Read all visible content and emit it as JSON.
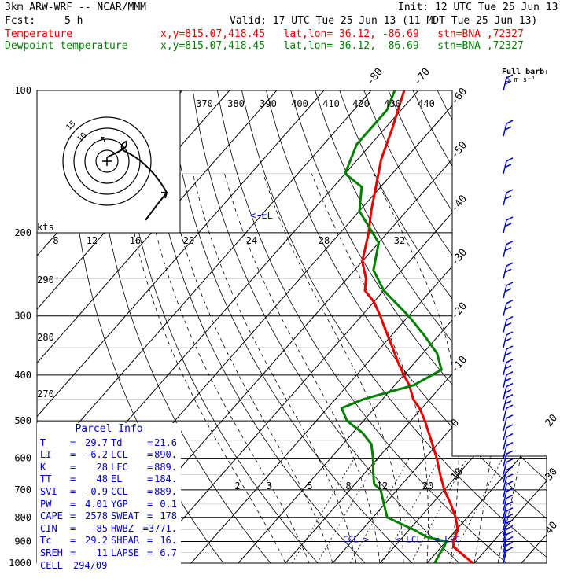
{
  "header": {
    "title": "3km ARW-WRF -- NCAR/MMM",
    "init": "Init: 12 UTC Tue 25 Jun 13",
    "fcst_label": "Fcst:",
    "fcst_value": "5 h",
    "valid": "Valid: 17 UTC Tue 25 Jun 13 (11 MDT Tue 25 Jun 13)",
    "temp_label": "Temperature",
    "dew_label": "Dewpoint temperature",
    "loc_info": "x,y=815.07,418.45   lat,lon= 36.12, -86.69   stn=BNA ,72327",
    "colors": {
      "temperature": "#e60000",
      "dewpoint": "#008000",
      "info": "#0000c8"
    }
  },
  "chart_data": {
    "type": "skew-t",
    "pressure_ticks": [
      100,
      200,
      300,
      400,
      500,
      600,
      700,
      800,
      900,
      1000
    ],
    "pressure_range": [
      1000,
      100
    ],
    "temperature_ticks": [
      -80,
      -70,
      -60,
      -50,
      -40,
      -30,
      -20,
      -10,
      0,
      10,
      20,
      30,
      40
    ],
    "theta_labels": [
      370,
      380,
      390,
      400,
      410,
      420,
      430,
      440
    ],
    "theta_e_labels": [
      290,
      280,
      270
    ],
    "mixing_ratio_labels": [
      2,
      3,
      5,
      8,
      12,
      20
    ],
    "series": [
      {
        "name": "Temperature",
        "color": "#e60000",
        "points": [
          [
            1000,
            29.7
          ],
          [
            960,
            26.0
          ],
          [
            925,
            22.7
          ],
          [
            900,
            21.5
          ],
          [
            850,
            20.3
          ],
          [
            800,
            17.5
          ],
          [
            750,
            14.0
          ],
          [
            700,
            10.0
          ],
          [
            650,
            6.3
          ],
          [
            600,
            2.5
          ],
          [
            550,
            -2.0
          ],
          [
            500,
            -7.0
          ],
          [
            470,
            -10.5
          ],
          [
            450,
            -13.5
          ],
          [
            420,
            -17.0
          ],
          [
            400,
            -20.0
          ],
          [
            380,
            -23.0
          ],
          [
            350,
            -27.5
          ],
          [
            320,
            -32.5
          ],
          [
            300,
            -36.0
          ],
          [
            280,
            -40.0
          ],
          [
            265,
            -44.0
          ],
          [
            250,
            -46.0
          ],
          [
            230,
            -50.0
          ],
          [
            200,
            -54.0
          ],
          [
            180,
            -57.5
          ],
          [
            160,
            -61.0
          ],
          [
            140,
            -65.0
          ],
          [
            120,
            -68.5
          ],
          [
            100,
            -73.0
          ]
        ]
      },
      {
        "name": "Dewpoint temperature",
        "color": "#008000",
        "points": [
          [
            1000,
            21.6
          ],
          [
            960,
            21.0
          ],
          [
            920,
            20.5
          ],
          [
            900,
            20.0
          ],
          [
            880,
            15.0
          ],
          [
            850,
            11.0
          ],
          [
            800,
            3.0
          ],
          [
            760,
            0.5
          ],
          [
            700,
            -3.5
          ],
          [
            680,
            -6.0
          ],
          [
            640,
            -8.5
          ],
          [
            600,
            -11.0
          ],
          [
            560,
            -14.0
          ],
          [
            530,
            -18.0
          ],
          [
            500,
            -23.5
          ],
          [
            470,
            -27.0
          ],
          [
            450,
            -24.0
          ],
          [
            420,
            -16.0
          ],
          [
            390,
            -13.0
          ],
          [
            360,
            -17.0
          ],
          [
            330,
            -23.0
          ],
          [
            300,
            -30.0
          ],
          [
            265,
            -40.0
          ],
          [
            240,
            -46.0
          ],
          [
            210,
            -50.0
          ],
          [
            180,
            -60.0
          ],
          [
            160,
            -64.0
          ],
          [
            150,
            -70.0
          ],
          [
            130,
            -73.0
          ],
          [
            110,
            -73.0
          ],
          [
            100,
            -75.0
          ]
        ]
      }
    ],
    "level_markers": [
      {
        "label": "<-EL",
        "pressure": 184
      },
      {
        "label": "CCL->",
        "pressure": 889
      },
      {
        "label": "<-LCL",
        "pressure": 890
      },
      {
        "label": "<-LFC",
        "pressure": 889
      }
    ],
    "hodograph": {
      "units_label": "kts",
      "ring_labels": [
        "5",
        "10",
        "15"
      ],
      "speed_axis": [
        8,
        12,
        16,
        20,
        24,
        28,
        32
      ]
    },
    "wind_barbs": {
      "legend": "Full barb:",
      "legend_value": "5 m s⁻¹",
      "levels": [
        1000,
        975,
        950,
        925,
        900,
        875,
        850,
        825,
        800,
        775,
        750,
        725,
        700,
        675,
        650,
        625,
        600,
        575,
        550,
        525,
        500,
        475,
        450,
        425,
        400,
        375,
        350,
        325,
        300,
        275,
        250,
        225,
        200,
        175,
        150,
        125,
        100
      ]
    }
  },
  "parcel_info": {
    "title": "Parcel Info",
    "rows": [
      [
        {
          "k": "T",
          "v": "29.7"
        },
        {
          "k": "Td",
          "v": "21.6"
        }
      ],
      [
        {
          "k": "LI",
          "v": "-6.2"
        },
        {
          "k": "LCL",
          "v": "890."
        }
      ],
      [
        {
          "k": "K",
          "v": "28"
        },
        {
          "k": "LFC",
          "v": "889."
        }
      ],
      [
        {
          "k": "TT",
          "v": "48"
        },
        {
          "k": "EL",
          "v": "184."
        }
      ],
      [
        {
          "k": "SVI",
          "v": "-0.9"
        },
        {
          "k": "CCL",
          "v": "889."
        }
      ],
      [
        {
          "k": "PW",
          "v": "4.01"
        },
        {
          "k": "YGP",
          "v": "0.1"
        }
      ],
      [
        {
          "k": "CAPE",
          "v": "2578"
        },
        {
          "k": "SWEAT",
          "v": "178"
        }
      ],
      [
        {
          "k": "CIN",
          "v": "-85"
        },
        {
          "k": "HWBZ",
          "v": "3771."
        }
      ],
      [
        {
          "k": "Tc",
          "v": "29.2"
        },
        {
          "k": "SHEAR",
          "v": "16."
        }
      ],
      [
        {
          "k": "SREH",
          "v": "11"
        },
        {
          "k": "LAPSE",
          "v": "6.7"
        }
      ]
    ],
    "cell_label": "CELL",
    "cell_value": "294/09"
  }
}
